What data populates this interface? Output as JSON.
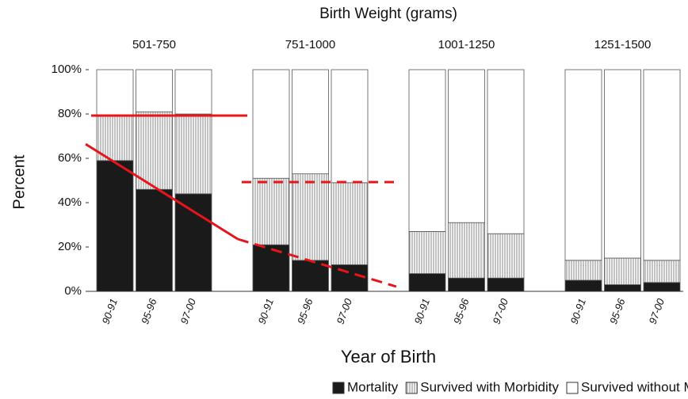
{
  "chart_data": {
    "type": "stacked-bar",
    "title": "Birth Weight (grams)",
    "xlabel": "Year of Birth",
    "ylabel": "Percent",
    "groups": [
      "501-750",
      "751-1000",
      "1001-1250",
      "1251-1500"
    ],
    "categories": [
      "90-91",
      "95-96",
      "97-00",
      "90-91",
      "95-96",
      "97-00",
      "90-91",
      "95-96",
      "97-00",
      "90-91",
      "95-96",
      "97-00"
    ],
    "series": [
      {
        "name": "Mortality",
        "color": "#1a1a1a",
        "values": [
          59,
          46,
          44,
          21,
          14,
          12,
          8,
          6,
          6,
          5,
          3,
          4
        ]
      },
      {
        "name": "Survived with Morbidity",
        "color": "#ffffff",
        "pattern": "vertical-lines",
        "values": [
          20,
          35,
          36,
          30,
          39,
          37,
          19,
          25,
          20,
          9,
          12,
          10
        ]
      },
      {
        "name": "Survived without Morbidity",
        "color": "#ffffff",
        "values": [
          21,
          19,
          20,
          49,
          47,
          51,
          73,
          69,
          74,
          86,
          85,
          86
        ]
      }
    ],
    "ylim": [
      0,
      100
    ],
    "yticks": [
      {
        "value": 0,
        "label": "0%"
      },
      {
        "value": 20,
        "label": "20%"
      },
      {
        "value": 40,
        "label": "40%"
      },
      {
        "value": 60,
        "label": "60%"
      },
      {
        "value": 80,
        "label": "80%"
      },
      {
        "value": 100,
        "label": "100%"
      }
    ],
    "legend": "bottom-right"
  }
}
